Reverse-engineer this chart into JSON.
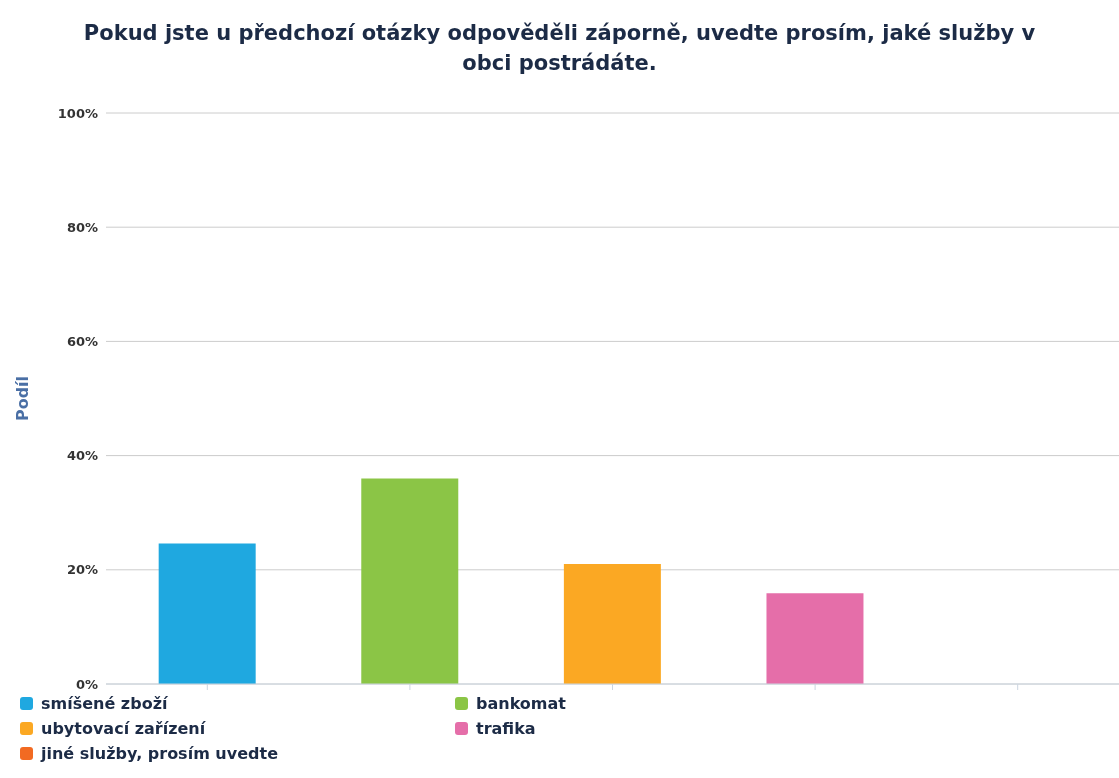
{
  "chart_data": {
    "type": "bar",
    "title": "Pokud jste u předchozí otázky odpověděli záporně, uvedte prosím, jaké služby v obci postrádáte.",
    "ylabel": "Podíl",
    "categories": [
      null,
      null,
      null,
      null,
      null
    ],
    "stacked": true,
    "series": [
      {
        "name": "smíšené zboží",
        "color": "#1fa8e0",
        "values": [
          24.6,
          null,
          null,
          null,
          null
        ]
      },
      {
        "name": "bankomat",
        "color": "#8bc546",
        "values": [
          null,
          36,
          null,
          null,
          null
        ]
      },
      {
        "name": "ubytovací zařízení",
        "color": "#fba823",
        "values": [
          null,
          null,
          21,
          null,
          null
        ]
      },
      {
        "name": "trafika",
        "color": "#e56ea9",
        "values": [
          null,
          null,
          null,
          15.9,
          null
        ]
      },
      {
        "name": "jiné služby, prosím uvedte",
        "color": "#f26a22",
        "values": [
          null,
          null,
          null,
          null,
          0
        ]
      }
    ],
    "ylim": [
      0,
      100
    ],
    "yticks": [
      {
        "value": 0,
        "label": "0%"
      },
      {
        "value": 20,
        "label": "20%"
      },
      {
        "value": 40,
        "label": "40%"
      },
      {
        "value": 60,
        "label": "60%"
      },
      {
        "value": 80,
        "label": "80%"
      },
      {
        "value": 100,
        "label": "100%"
      }
    ],
    "grid": "y",
    "legend": "bottom",
    "tick_labels": "y"
  }
}
